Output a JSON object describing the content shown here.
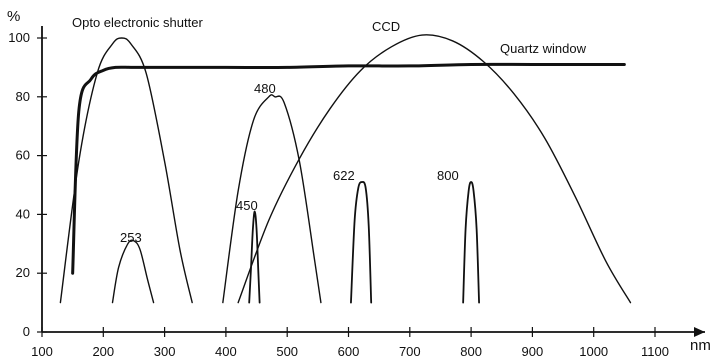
{
  "chart_data": {
    "type": "line",
    "title": "",
    "xlabel": "nm",
    "ylabel": "%",
    "xlim": [
      100,
      1100
    ],
    "ylim": [
      0,
      100
    ],
    "x_ticks": [
      100,
      200,
      300,
      400,
      500,
      600,
      700,
      800,
      900,
      1000,
      1100
    ],
    "y_ticks": [
      0,
      20,
      40,
      60,
      80,
      100
    ],
    "grid": false,
    "series": [
      {
        "name": "Quartz window",
        "x": [
          150,
          160,
          180,
          200,
          220,
          250,
          300,
          400,
          500,
          600,
          700,
          800,
          900,
          1000,
          1050
        ],
        "y": [
          20,
          75,
          86,
          89,
          90,
          90,
          90,
          90,
          90,
          90.5,
          90.5,
          91,
          91,
          91,
          91
        ]
      },
      {
        "name": "Opto electronic shutter",
        "x": [
          130,
          160,
          190,
          215,
          230,
          245,
          270,
          300,
          325,
          345
        ],
        "y": [
          10,
          58,
          88,
          98,
          100,
          98,
          88,
          58,
          28,
          10
        ]
      },
      {
        "name": "CCD",
        "x": [
          420,
          470,
          520,
          570,
          620,
          670,
          720,
          770,
          820,
          870,
          920,
          970,
          1020,
          1060
        ],
        "y": [
          10,
          38,
          59,
          76,
          89,
          97,
          101,
          99,
          92,
          81,
          66,
          46,
          24,
          10
        ]
      },
      {
        "name": "253",
        "x": [
          215,
          225,
          240,
          250,
          260,
          272,
          282
        ],
        "y": [
          10,
          22,
          30,
          31,
          28,
          18,
          10
        ]
      },
      {
        "name": "480",
        "x": [
          395,
          420,
          445,
          470,
          480,
          495,
          520,
          545,
          555
        ],
        "y": [
          10,
          48,
          72,
          80,
          80,
          78,
          58,
          24,
          10
        ]
      },
      {
        "name": "450",
        "x": [
          438,
          441,
          444,
          447,
          450,
          453,
          455
        ],
        "y": [
          10,
          22,
          35,
          41,
          35,
          20,
          10
        ]
      },
      {
        "name": "622",
        "x": [
          604,
          610,
          616,
          622,
          628,
          633,
          637
        ],
        "y": [
          10,
          38,
          49,
          51,
          49,
          36,
          10
        ]
      },
      {
        "name": "800",
        "x": [
          787,
          791,
          796,
          800,
          804,
          809,
          813
        ],
        "y": [
          10,
          35,
          48,
          51,
          48,
          35,
          10
        ]
      }
    ]
  }
}
